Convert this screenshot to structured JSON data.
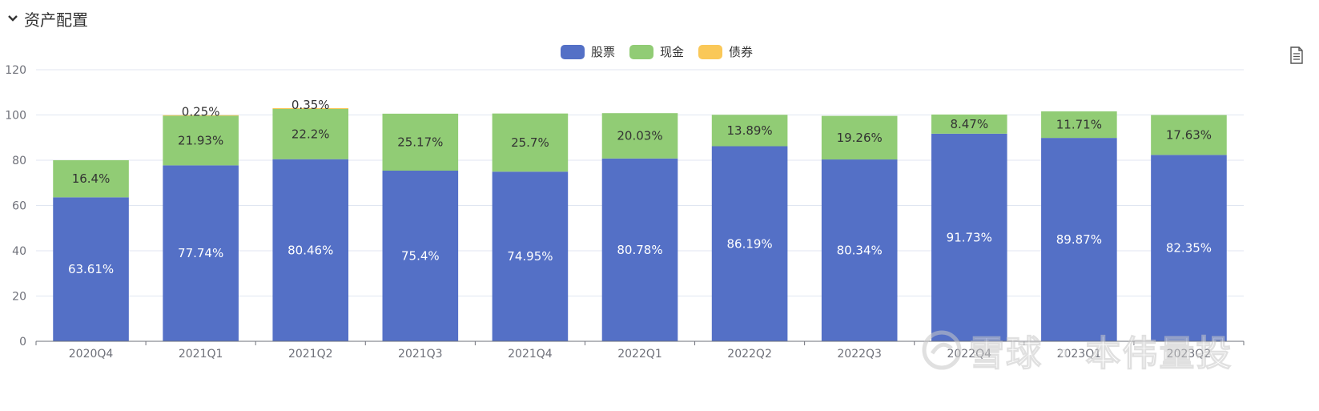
{
  "header": {
    "title": "资产配置"
  },
  "legend": [
    {
      "name": "股票",
      "color": "#5470c6"
    },
    {
      "name": "现金",
      "color": "#91cc75"
    },
    {
      "name": "债券",
      "color": "#fac858"
    }
  ],
  "watermark": {
    "text": "雪球 · 本伟量投"
  },
  "chart_data": {
    "type": "bar",
    "stacked": true,
    "categories": [
      "2020Q4",
      "2021Q1",
      "2021Q2",
      "2021Q3",
      "2021Q4",
      "2022Q1",
      "2022Q2",
      "2022Q3",
      "2022Q4",
      "2023Q1",
      "2023Q2"
    ],
    "series": [
      {
        "name": "股票",
        "color": "#5470c6",
        "values": [
          63.61,
          77.74,
          80.46,
          75.4,
          74.95,
          80.78,
          86.19,
          80.34,
          91.73,
          89.87,
          82.35
        ],
        "labels": [
          "63.61%",
          "77.74%",
          "80.46%",
          "75.4%",
          "74.95%",
          "80.78%",
          "86.19%",
          "80.34%",
          "91.73%",
          "89.87%",
          "82.35%"
        ]
      },
      {
        "name": "现金",
        "color": "#91cc75",
        "values": [
          16.4,
          21.93,
          22.2,
          25.17,
          25.7,
          20.03,
          13.89,
          19.26,
          8.47,
          11.71,
          17.63
        ],
        "labels": [
          "16.4%",
          "21.93%",
          "22.2%",
          "25.17%",
          "25.7%",
          "20.03%",
          "13.89%",
          "19.26%",
          "8.47%",
          "11.71%",
          "17.63%"
        ]
      },
      {
        "name": "债券",
        "color": "#fac858",
        "values": [
          0,
          0.25,
          0.35,
          0,
          0,
          0,
          0,
          0,
          0,
          0,
          0
        ],
        "labels": [
          "",
          "0.25%",
          "0.35%",
          "",
          "",
          "",
          "",
          "",
          "",
          "",
          ""
        ]
      }
    ],
    "ylim": [
      0,
      120
    ],
    "yticks": [
      0,
      20,
      40,
      60,
      80,
      100,
      120
    ],
    "grid": true,
    "legend_position": "top-center"
  }
}
